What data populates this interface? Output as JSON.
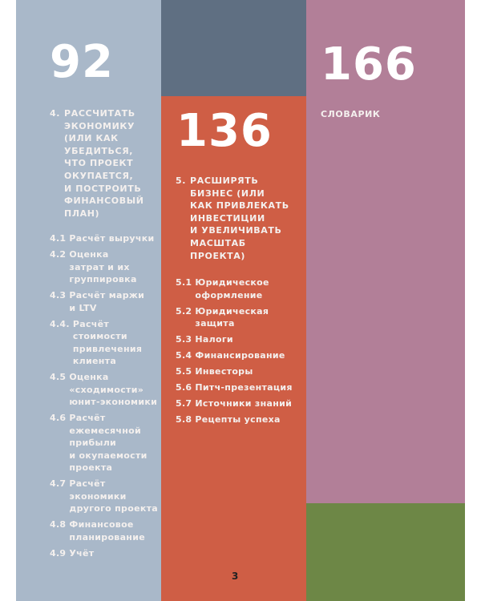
{
  "colors": {
    "col1": "#a9b8c9",
    "col2_top": "#5f6f82",
    "col2": "#cf5e45",
    "col3": "#b27f98",
    "col3_bottom": "#6d8746"
  },
  "col1": {
    "page": "92",
    "heading_num": "4.",
    "heading": "Рассчитать\nэкономику\n(или как\nубедиться,\nчто проект\nокупается,\nи построить\nфинансовый\nплан)",
    "items": [
      {
        "num": "4.1",
        "text": "Расчёт выручки"
      },
      {
        "num": "4.2",
        "text": "Оценка\nзатрат и их\nгруппировка"
      },
      {
        "num": "4.3",
        "text": "Расчёт маржи\nи LTV"
      },
      {
        "num": "4.4.",
        "text": "Расчёт\nстоимости\nпривлечения\nклиента"
      },
      {
        "num": "4.5",
        "text": "Оценка\n«сходимости»\nюнит-экономики"
      },
      {
        "num": "4.6",
        "text": "Расчёт\nежемесячной\nприбыли\nи окупаемости\nпроекта"
      },
      {
        "num": "4.7",
        "text": "Расчёт\nэкономики\nдругого проекта"
      },
      {
        "num": "4.8",
        "text": "Финансовое\nпланирование"
      },
      {
        "num": "4.9",
        "text": "Учёт"
      }
    ]
  },
  "col2": {
    "page": "136",
    "heading_num": "5.",
    "heading": "Расширять\nбизнес (или\nкак привлекать\nинвестиции\nи увеличивать\nмасштаб проекта)",
    "items": [
      {
        "num": "5.1",
        "text": "Юридическое\nоформление"
      },
      {
        "num": "5.2",
        "text": "Юридическая\nзащита"
      },
      {
        "num": "5.3",
        "text": "Налоги"
      },
      {
        "num": "5.4",
        "text": "Финансирование"
      },
      {
        "num": "5.5",
        "text": "Инвесторы"
      },
      {
        "num": "5.6",
        "text": "Питч-презентация"
      },
      {
        "num": "5.7",
        "text": "Источники знаний"
      },
      {
        "num": "5.8",
        "text": "Рецепты успеха"
      }
    ]
  },
  "col3": {
    "page": "166",
    "heading": "Словарик"
  },
  "footer": {
    "page_number": "3"
  }
}
